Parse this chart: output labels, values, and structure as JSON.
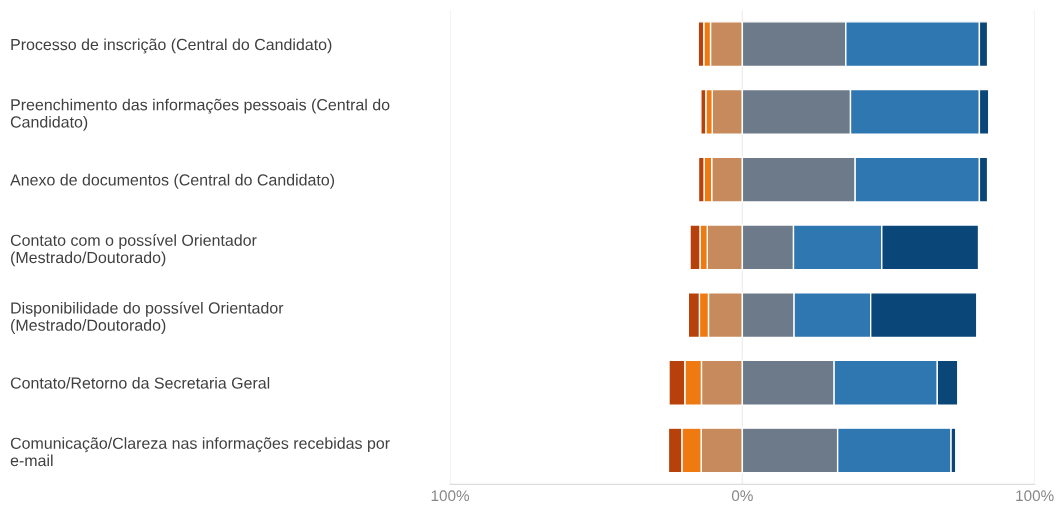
{
  "chart_data": {
    "type": "bar",
    "orientation": "horizontal",
    "stacked": true,
    "categories": [
      "Processo de inscrição (Central do Candidato)",
      "Preenchimento das informações pessoais (Central do\nCandidato)",
      "Anexo de documentos (Central do Candidato)",
      "Contato com o possível Orientador\n(Mestrado/Doutorado)",
      "Disponibilidade do possível Orientador\n(Mestrado/Doutorado)",
      "Contato/Retorno da Secretaria Geral",
      "Comunicação/Clareza nas informações recebidas por\ne-mail"
    ],
    "series": [
      {
        "color": "#c68a5c",
        "values": [
          -10.9,
          -10.3,
          -10.5,
          -12.0,
          -11.6,
          -14.0,
          -14.1
        ]
      },
      {
        "color": "#f07a12",
        "values": [
          -2.3,
          -2.2,
          -2.6,
          -2.5,
          -3.1,
          -5.7,
          -6.6
        ]
      },
      {
        "color": "#b8400a",
        "values": [
          -1.9,
          -1.7,
          -1.9,
          -3.4,
          -3.8,
          -5.4,
          -4.6
        ]
      },
      {
        "color": "#6c7a8a",
        "values": [
          35.4,
          37.0,
          38.6,
          17.5,
          17.7,
          31.4,
          32.6
        ]
      },
      {
        "color": "#2e77b0",
        "values": [
          45.7,
          44.1,
          42.5,
          30.2,
          26.2,
          35.3,
          38.8
        ]
      },
      {
        "color": "#0b4678",
        "values": [
          2.8,
          3.2,
          2.8,
          33.1,
          36.3,
          7.0,
          1.6
        ]
      }
    ],
    "xlim": [
      -100,
      100
    ],
    "xticks": [
      {
        "value": -100,
        "label": "100%"
      },
      {
        "value": 0,
        "label": "0%"
      },
      {
        "value": 100,
        "label": "100%"
      }
    ],
    "grid": "x"
  }
}
